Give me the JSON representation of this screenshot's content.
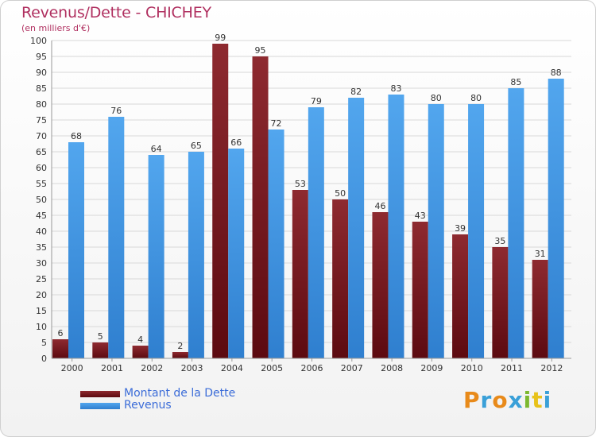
{
  "title": "Revenus/Dette - CHICHEY",
  "subtitle": "(en milliers d'€)",
  "legend": {
    "debt_label": "Montant de la Dette",
    "revenue_label": "Revenus"
  },
  "logo": {
    "letters": [
      "P",
      "r",
      "o",
      "x",
      "i",
      "t",
      "i"
    ]
  },
  "colors": {
    "debt": "#7a1a1f",
    "revenue": "#3d8ee0",
    "title": "#b03060",
    "legend_text": "#3b6cd8",
    "grid": "#d8d8d8",
    "logo": [
      "#e88a1a",
      "#3aa0d8",
      "#e88a1a",
      "#3aa0d8",
      "#7cb82f",
      "#e8c21a",
      "#3aa0d8"
    ]
  },
  "chart_data": {
    "type": "bar",
    "categories": [
      "2000",
      "2001",
      "2002",
      "2003",
      "2004",
      "2005",
      "2006",
      "2007",
      "2008",
      "2009",
      "2010",
      "2011",
      "2012"
    ],
    "series": [
      {
        "name": "Montant de la Dette",
        "values": [
          6,
          5,
          4,
          2,
          99,
          95,
          53,
          50,
          46,
          43,
          39,
          35,
          31
        ]
      },
      {
        "name": "Revenus",
        "values": [
          68,
          76,
          64,
          65,
          66,
          72,
          79,
          82,
          83,
          80,
          80,
          85,
          88
        ]
      }
    ],
    "yticks": [
      0,
      5,
      10,
      15,
      20,
      25,
      30,
      35,
      40,
      45,
      50,
      55,
      60,
      65,
      70,
      75,
      80,
      85,
      90,
      95,
      100
    ],
    "ylim": [
      0,
      100
    ],
    "grid": true,
    "legend_position": "bottom-left"
  }
}
